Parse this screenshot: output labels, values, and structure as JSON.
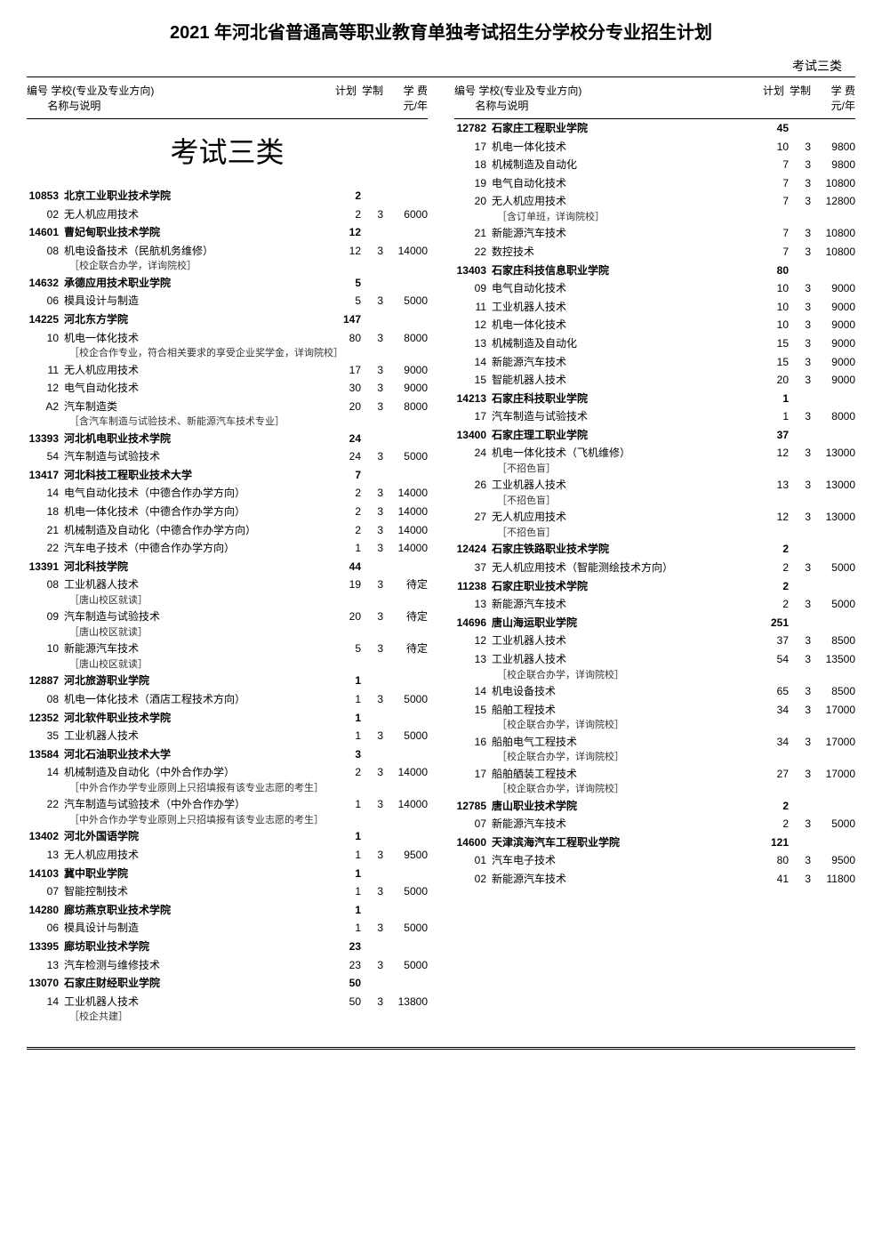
{
  "title": "2021 年河北省普通高等职业教育单独考试招生分学校分专业招生计划",
  "categoryTop": "考试三类",
  "categoryBig": "考试三类",
  "header": {
    "idName": "编号  学校(专业及专业方向)",
    "nameSub": "名称与说明",
    "plan": "计划",
    "years": "学制",
    "fee": "学 费\n元/年"
  },
  "left": [
    {
      "t": "school",
      "code": "10853",
      "name": "北京工业职业技术学院",
      "plan": "2"
    },
    {
      "t": "major",
      "code": "02",
      "name": "无人机应用技术",
      "plan": "2",
      "years": "3",
      "fee": "6000"
    },
    {
      "t": "school",
      "code": "14601",
      "name": "曹妃甸职业技术学院",
      "plan": "12"
    },
    {
      "t": "major",
      "code": "08",
      "name": "机电设备技术（民航机务维修）",
      "plan": "12",
      "years": "3",
      "fee": "14000"
    },
    {
      "t": "note",
      "text": "［校企联合办学，详询院校］"
    },
    {
      "t": "school",
      "code": "14632",
      "name": "承德应用技术职业学院",
      "plan": "5"
    },
    {
      "t": "major",
      "code": "06",
      "name": "模具设计与制造",
      "plan": "5",
      "years": "3",
      "fee": "5000"
    },
    {
      "t": "school",
      "code": "14225",
      "name": "河北东方学院",
      "plan": "147"
    },
    {
      "t": "major",
      "code": "10",
      "name": "机电一体化技术",
      "plan": "80",
      "years": "3",
      "fee": "8000"
    },
    {
      "t": "note",
      "text": "［校企合作专业，符合相关要求的享受企业奖学金，详询院校］"
    },
    {
      "t": "major",
      "code": "11",
      "name": "无人机应用技术",
      "plan": "17",
      "years": "3",
      "fee": "9000"
    },
    {
      "t": "major",
      "code": "12",
      "name": "电气自动化技术",
      "plan": "30",
      "years": "3",
      "fee": "9000"
    },
    {
      "t": "major",
      "code": "A2",
      "name": "汽车制造类",
      "plan": "20",
      "years": "3",
      "fee": "8000"
    },
    {
      "t": "note",
      "text": "［含汽车制造与试验技术、新能源汽车技术专业］"
    },
    {
      "t": "school",
      "code": "13393",
      "name": "河北机电职业技术学院",
      "plan": "24"
    },
    {
      "t": "major",
      "code": "54",
      "name": "汽车制造与试验技术",
      "plan": "24",
      "years": "3",
      "fee": "5000"
    },
    {
      "t": "school",
      "code": "13417",
      "name": "河北科技工程职业技术大学",
      "plan": "7"
    },
    {
      "t": "major",
      "code": "14",
      "name": "电气自动化技术（中德合作办学方向）",
      "plan": "2",
      "years": "3",
      "fee": "14000"
    },
    {
      "t": "major",
      "code": "18",
      "name": "机电一体化技术（中德合作办学方向）",
      "plan": "2",
      "years": "3",
      "fee": "14000"
    },
    {
      "t": "major",
      "code": "21",
      "name": "机械制造及自动化（中德合作办学方向）",
      "plan": "2",
      "years": "3",
      "fee": "14000"
    },
    {
      "t": "major",
      "code": "22",
      "name": "汽车电子技术（中德合作办学方向）",
      "plan": "1",
      "years": "3",
      "fee": "14000"
    },
    {
      "t": "school",
      "code": "13391",
      "name": "河北科技学院",
      "plan": "44"
    },
    {
      "t": "major",
      "code": "08",
      "name": "工业机器人技术",
      "plan": "19",
      "years": "3",
      "fee": "待定"
    },
    {
      "t": "note",
      "text": "［唐山校区就读］"
    },
    {
      "t": "major",
      "code": "09",
      "name": "汽车制造与试验技术",
      "plan": "20",
      "years": "3",
      "fee": "待定"
    },
    {
      "t": "note",
      "text": "［唐山校区就读］"
    },
    {
      "t": "major",
      "code": "10",
      "name": "新能源汽车技术",
      "plan": "5",
      "years": "3",
      "fee": "待定"
    },
    {
      "t": "note",
      "text": "［唐山校区就读］"
    },
    {
      "t": "school",
      "code": "12887",
      "name": "河北旅游职业学院",
      "plan": "1"
    },
    {
      "t": "major",
      "code": "08",
      "name": "机电一体化技术（酒店工程技术方向）",
      "plan": "1",
      "years": "3",
      "fee": "5000"
    },
    {
      "t": "school",
      "code": "12352",
      "name": "河北软件职业技术学院",
      "plan": "1"
    },
    {
      "t": "major",
      "code": "35",
      "name": "工业机器人技术",
      "plan": "1",
      "years": "3",
      "fee": "5000"
    },
    {
      "t": "school",
      "code": "13584",
      "name": "河北石油职业技术大学",
      "plan": "3"
    },
    {
      "t": "major",
      "code": "14",
      "name": "机械制造及自动化（中外合作办学）",
      "plan": "2",
      "years": "3",
      "fee": "14000"
    },
    {
      "t": "note",
      "text": "［中外合作办学专业原则上只招填报有该专业志愿的考生］"
    },
    {
      "t": "major",
      "code": "22",
      "name": "汽车制造与试验技术（中外合作办学）",
      "plan": "1",
      "years": "3",
      "fee": "14000"
    },
    {
      "t": "note",
      "text": "［中外合作办学专业原则上只招填报有该专业志愿的考生］"
    },
    {
      "t": "school",
      "code": "13402",
      "name": "河北外国语学院",
      "plan": "1"
    },
    {
      "t": "major",
      "code": "13",
      "name": "无人机应用技术",
      "plan": "1",
      "years": "3",
      "fee": "9500"
    },
    {
      "t": "school",
      "code": "14103",
      "name": "冀中职业学院",
      "plan": "1"
    },
    {
      "t": "major",
      "code": "07",
      "name": "智能控制技术",
      "plan": "1",
      "years": "3",
      "fee": "5000"
    },
    {
      "t": "school",
      "code": "14280",
      "name": "廊坊燕京职业技术学院",
      "plan": "1"
    },
    {
      "t": "major",
      "code": "06",
      "name": "模具设计与制造",
      "plan": "1",
      "years": "3",
      "fee": "5000"
    },
    {
      "t": "school",
      "code": "13395",
      "name": "廊坊职业技术学院",
      "plan": "23"
    },
    {
      "t": "major",
      "code": "13",
      "name": "汽车检测与维修技术",
      "plan": "23",
      "years": "3",
      "fee": "5000"
    },
    {
      "t": "school",
      "code": "13070",
      "name": "石家庄财经职业学院",
      "plan": "50"
    },
    {
      "t": "major",
      "code": "14",
      "name": "工业机器人技术",
      "plan": "50",
      "years": "3",
      "fee": "13800"
    },
    {
      "t": "note",
      "text": "［校企共建］"
    }
  ],
  "right": [
    {
      "t": "school",
      "code": "12782",
      "name": "石家庄工程职业学院",
      "plan": "45"
    },
    {
      "t": "major",
      "code": "17",
      "name": "机电一体化技术",
      "plan": "10",
      "years": "3",
      "fee": "9800"
    },
    {
      "t": "major",
      "code": "18",
      "name": "机械制造及自动化",
      "plan": "7",
      "years": "3",
      "fee": "9800"
    },
    {
      "t": "major",
      "code": "19",
      "name": "电气自动化技术",
      "plan": "7",
      "years": "3",
      "fee": "10800"
    },
    {
      "t": "major",
      "code": "20",
      "name": "无人机应用技术",
      "plan": "7",
      "years": "3",
      "fee": "12800"
    },
    {
      "t": "note",
      "text": "［含订单班，详询院校］"
    },
    {
      "t": "major",
      "code": "21",
      "name": "新能源汽车技术",
      "plan": "7",
      "years": "3",
      "fee": "10800"
    },
    {
      "t": "major",
      "code": "22",
      "name": "数控技术",
      "plan": "7",
      "years": "3",
      "fee": "10800"
    },
    {
      "t": "school",
      "code": "13403",
      "name": "石家庄科技信息职业学院",
      "plan": "80"
    },
    {
      "t": "major",
      "code": "09",
      "name": "电气自动化技术",
      "plan": "10",
      "years": "3",
      "fee": "9000"
    },
    {
      "t": "major",
      "code": "11",
      "name": "工业机器人技术",
      "plan": "10",
      "years": "3",
      "fee": "9000"
    },
    {
      "t": "major",
      "code": "12",
      "name": "机电一体化技术",
      "plan": "10",
      "years": "3",
      "fee": "9000"
    },
    {
      "t": "major",
      "code": "13",
      "name": "机械制造及自动化",
      "plan": "15",
      "years": "3",
      "fee": "9000"
    },
    {
      "t": "major",
      "code": "14",
      "name": "新能源汽车技术",
      "plan": "15",
      "years": "3",
      "fee": "9000"
    },
    {
      "t": "major",
      "code": "15",
      "name": "智能机器人技术",
      "plan": "20",
      "years": "3",
      "fee": "9000"
    },
    {
      "t": "school",
      "code": "14213",
      "name": "石家庄科技职业学院",
      "plan": "1"
    },
    {
      "t": "major",
      "code": "17",
      "name": "汽车制造与试验技术",
      "plan": "1",
      "years": "3",
      "fee": "8000"
    },
    {
      "t": "school",
      "code": "13400",
      "name": "石家庄理工职业学院",
      "plan": "37"
    },
    {
      "t": "major",
      "code": "24",
      "name": "机电一体化技术（飞机维修）",
      "plan": "12",
      "years": "3",
      "fee": "13000"
    },
    {
      "t": "note",
      "text": "［不招色盲］"
    },
    {
      "t": "major",
      "code": "26",
      "name": "工业机器人技术",
      "plan": "13",
      "years": "3",
      "fee": "13000"
    },
    {
      "t": "note",
      "text": "［不招色盲］"
    },
    {
      "t": "major",
      "code": "27",
      "name": "无人机应用技术",
      "plan": "12",
      "years": "3",
      "fee": "13000"
    },
    {
      "t": "note",
      "text": "［不招色盲］"
    },
    {
      "t": "school",
      "code": "12424",
      "name": "石家庄铁路职业技术学院",
      "plan": "2"
    },
    {
      "t": "major",
      "code": "37",
      "name": "无人机应用技术（智能测绘技术方向）",
      "plan": "2",
      "years": "3",
      "fee": "5000"
    },
    {
      "t": "school",
      "code": "11238",
      "name": "石家庄职业技术学院",
      "plan": "2"
    },
    {
      "t": "major",
      "code": "13",
      "name": "新能源汽车技术",
      "plan": "2",
      "years": "3",
      "fee": "5000"
    },
    {
      "t": "school",
      "code": "14696",
      "name": "唐山海运职业学院",
      "plan": "251"
    },
    {
      "t": "major",
      "code": "12",
      "name": "工业机器人技术",
      "plan": "37",
      "years": "3",
      "fee": "8500"
    },
    {
      "t": "major",
      "code": "13",
      "name": "工业机器人技术",
      "plan": "54",
      "years": "3",
      "fee": "13500"
    },
    {
      "t": "note",
      "text": "［校企联合办学，详询院校］"
    },
    {
      "t": "major",
      "code": "14",
      "name": "机电设备技术",
      "plan": "65",
      "years": "3",
      "fee": "8500"
    },
    {
      "t": "major",
      "code": "15",
      "name": "船舶工程技术",
      "plan": "34",
      "years": "3",
      "fee": "17000"
    },
    {
      "t": "note",
      "text": "［校企联合办学，详询院校］"
    },
    {
      "t": "major",
      "code": "16",
      "name": "船舶电气工程技术",
      "plan": "34",
      "years": "3",
      "fee": "17000"
    },
    {
      "t": "note",
      "text": "［校企联合办学，详询院校］"
    },
    {
      "t": "major",
      "code": "17",
      "name": "船舶舾装工程技术",
      "plan": "27",
      "years": "3",
      "fee": "17000"
    },
    {
      "t": "note",
      "text": "［校企联合办学，详询院校］"
    },
    {
      "t": "school",
      "code": "12785",
      "name": "唐山职业技术学院",
      "plan": "2"
    },
    {
      "t": "major",
      "code": "07",
      "name": "新能源汽车技术",
      "plan": "2",
      "years": "3",
      "fee": "5000"
    },
    {
      "t": "school",
      "code": "14600",
      "name": "天津滨海汽车工程职业学院",
      "plan": "121"
    },
    {
      "t": "major",
      "code": "01",
      "name": "汽车电子技术",
      "plan": "80",
      "years": "3",
      "fee": "9500"
    },
    {
      "t": "major",
      "code": "02",
      "name": "新能源汽车技术",
      "plan": "41",
      "years": "3",
      "fee": "11800"
    }
  ]
}
